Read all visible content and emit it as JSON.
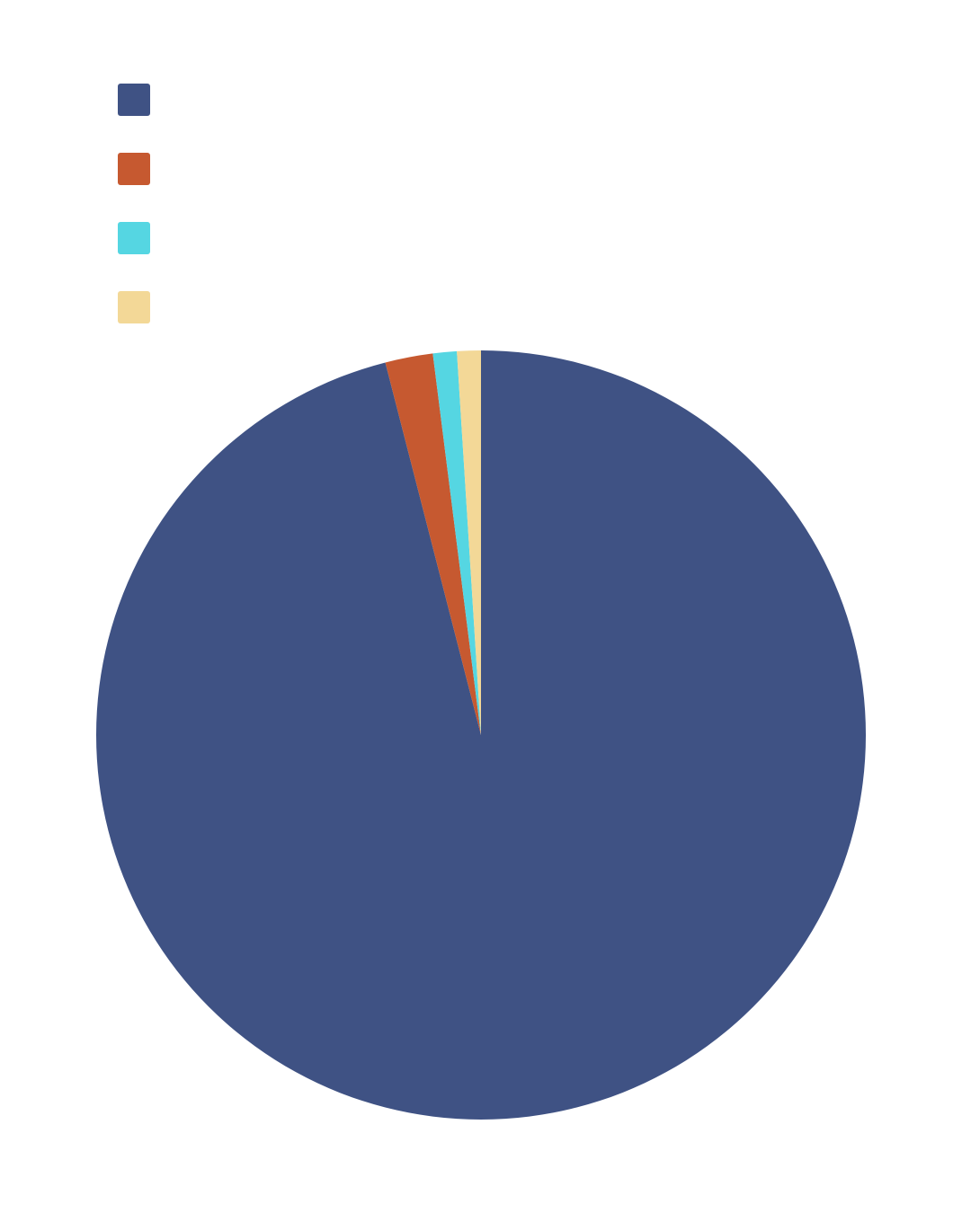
{
  "chart_data": {
    "type": "pie",
    "title": "",
    "start_angle": "12 o'clock",
    "direction": "clockwise",
    "legend_position": "top-left",
    "slices": [
      {
        "label": "",
        "value": 96.0,
        "color": "#3f5284"
      },
      {
        "label": "",
        "value": 2.0,
        "color": "#c65930"
      },
      {
        "label": "",
        "value": 1.0,
        "color": "#55d6e2"
      },
      {
        "label": "",
        "value": 1.0,
        "color": "#f3d897"
      }
    ]
  }
}
